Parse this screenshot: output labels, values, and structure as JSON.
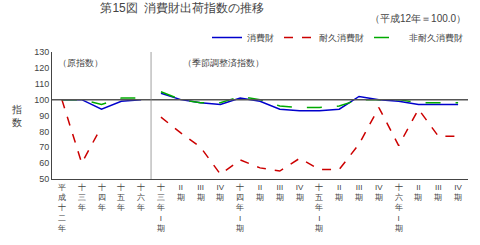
{
  "chart_data": {
    "type": "line",
    "title": "第15図  消費財出荷指数の推移",
    "subtitle": "（平成12年＝100.0）",
    "ylabel": "指\n数",
    "annotations": [
      "（原指数）",
      "（季節調整済指数）"
    ],
    "categories": [
      "平\n成\n十\n二\n年",
      "十\n三\n年",
      "十\n四\n年",
      "十\n五\n年",
      "十\n六\n年",
      "十\n三\n年\nI\n期",
      "II\n期",
      "III\n期",
      "IV\n期",
      "十\n四\n年\nI\n期",
      "II\n期",
      "III\n期",
      "IV\n期",
      "十\n五\n年\nI\n期",
      "II\n期",
      "III\n期",
      "IV\n期",
      "十\n六\n年\nI\n期",
      "II\n期",
      "III\n期",
      "IV\n期"
    ],
    "series": [
      {
        "name": "消費財",
        "color": "#0000cc",
        "line_style": "solid",
        "values": [
          100,
          100,
          94,
          99,
          100,
          null,
          null,
          null,
          null,
          null,
          null,
          null,
          null,
          null,
          null,
          null,
          null,
          null,
          null,
          null,
          null
        ]
      },
      {
        "name": "耐久消費財",
        "color": "#cc0000",
        "line_style": "dash",
        "values": [
          100,
          60,
          83,
          null,
          null,
          null,
          null,
          null,
          null,
          null,
          null,
          null,
          null,
          null,
          null,
          null,
          null,
          null,
          null,
          null,
          null
        ]
      },
      {
        "name": "非耐久消費財",
        "color": "#00aa00",
        "line_style": "longdash",
        "values": [
          100,
          100,
          97,
          101,
          101,
          null,
          null,
          null,
          null,
          null,
          null,
          null,
          null,
          null,
          null,
          null,
          null,
          null,
          null,
          null,
          null
        ]
      },
      {
        "name": "消費財",
        "color": "#0000cc",
        "line_style": "solid",
        "values": [
          null,
          null,
          null,
          null,
          null,
          104,
          100,
          98,
          97,
          101,
          99,
          94,
          93,
          93,
          94,
          102,
          100,
          99,
          97,
          97,
          97
        ]
      },
      {
        "name": "耐久消費財",
        "color": "#cc0000",
        "line_style": "dash",
        "values": [
          null,
          null,
          null,
          null,
          null,
          89,
          79,
          70,
          53,
          62,
          57,
          55,
          63,
          56,
          56,
          72,
          95,
          71,
          94,
          77,
          77
        ]
      },
      {
        "name": "非耐久消費財",
        "color": "#00aa00",
        "line_style": "longdash",
        "values": [
          null,
          null,
          null,
          null,
          null,
          105,
          100,
          98,
          98,
          102,
          100,
          96,
          95,
          95,
          96,
          100,
          100,
          100,
          98,
          98,
          98
        ]
      }
    ],
    "ylim": [
      50,
      130
    ],
    "yticks": [
      50,
      60,
      70,
      80,
      90,
      100,
      110,
      120,
      130
    ],
    "hline": 100,
    "grid": false,
    "legend": "upper right"
  }
}
